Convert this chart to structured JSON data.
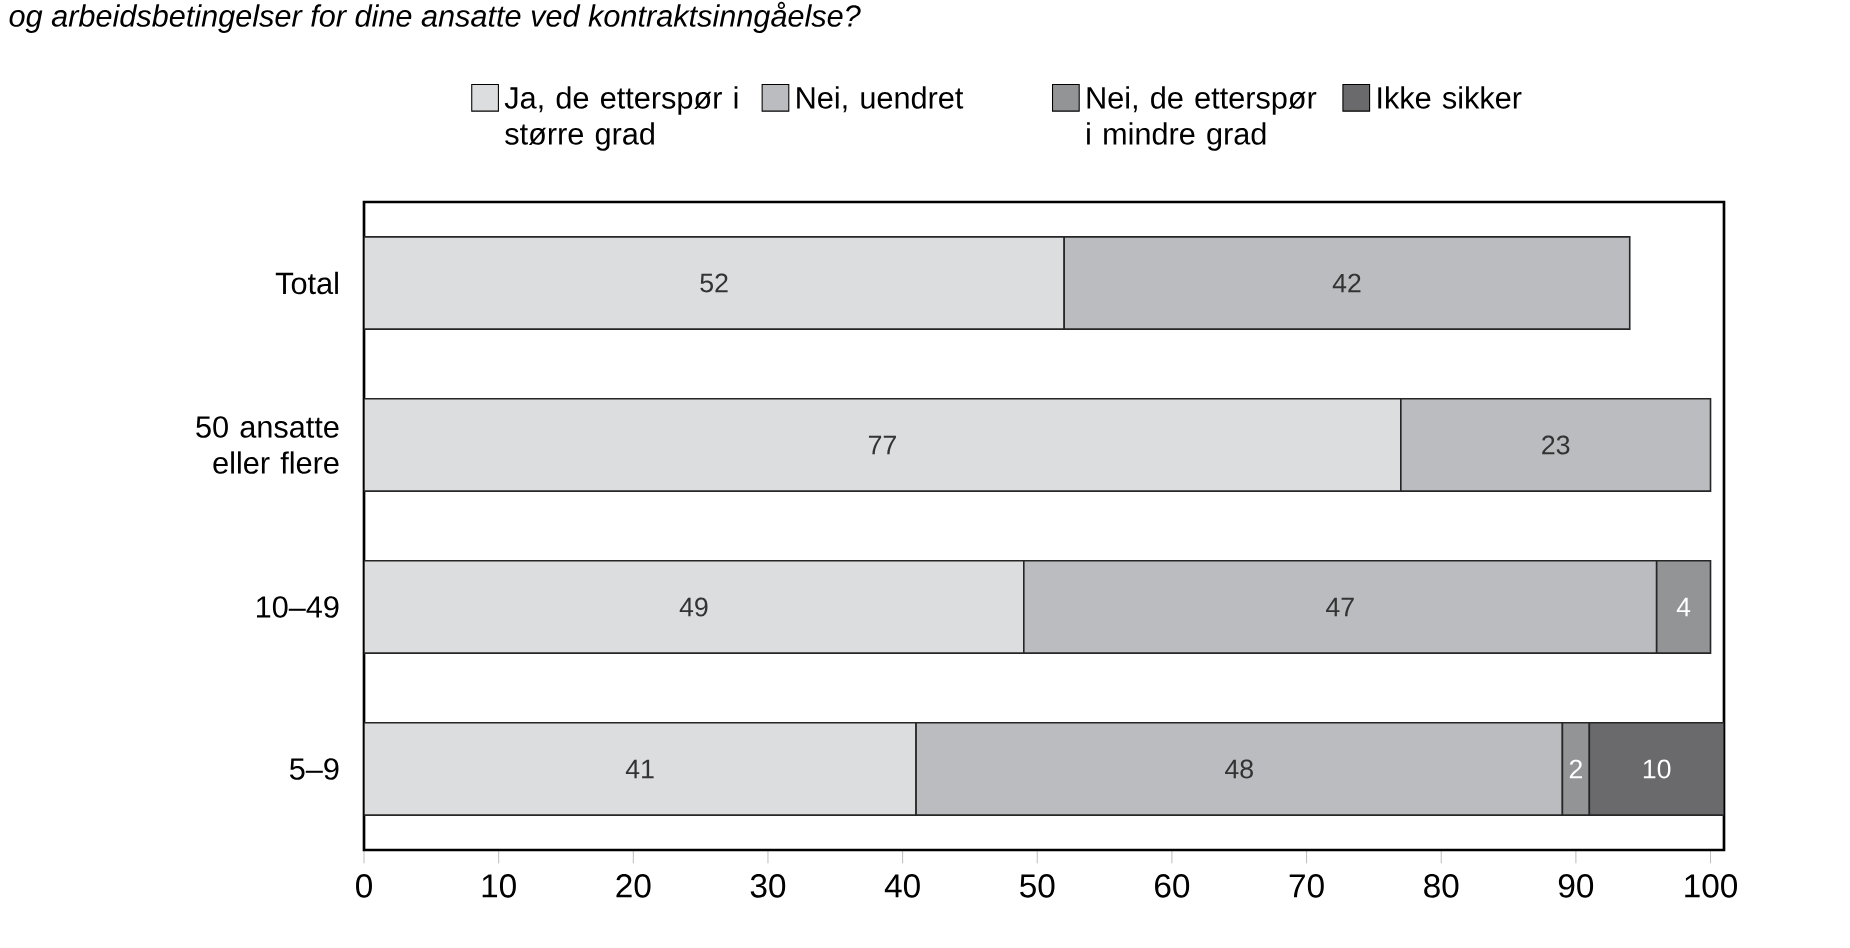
{
  "chart_data": {
    "type": "bar",
    "orientation": "horizontal",
    "stacked": true,
    "title": "og arbeidsbetingelser for dine ansatte ved kontraktsinngåelse?",
    "categories": [
      "Total",
      "50 ansatte eller flere",
      "10–49",
      "5–9"
    ],
    "series": [
      {
        "name": "Ja, de etterspør i større grad",
        "color": "#dcdddf",
        "values": [
          52,
          77,
          49,
          41
        ],
        "value_labels": [
          "52",
          "77",
          "49",
          "41"
        ]
      },
      {
        "name": "Nei, uendret",
        "color": "#bbbcbf",
        "values": [
          42,
          23,
          47,
          48
        ],
        "value_labels": [
          "42",
          "23",
          "47",
          "48"
        ]
      },
      {
        "name": "Nei, de etterspør i mindre grad",
        "color": "#939496",
        "values": [
          null,
          null,
          4,
          2
        ],
        "value_labels": [
          null,
          null,
          "4",
          "2"
        ]
      },
      {
        "name": "Ikke sikker",
        "color": "#6a6a6d",
        "values": [
          null,
          null,
          null,
          10
        ],
        "value_labels": [
          null,
          null,
          null,
          "10"
        ]
      }
    ],
    "xlim": [
      0,
      101
    ],
    "xticks": [
      0,
      10,
      20,
      30,
      40,
      50,
      60,
      70,
      80,
      90,
      100
    ],
    "legend": "top"
  }
}
